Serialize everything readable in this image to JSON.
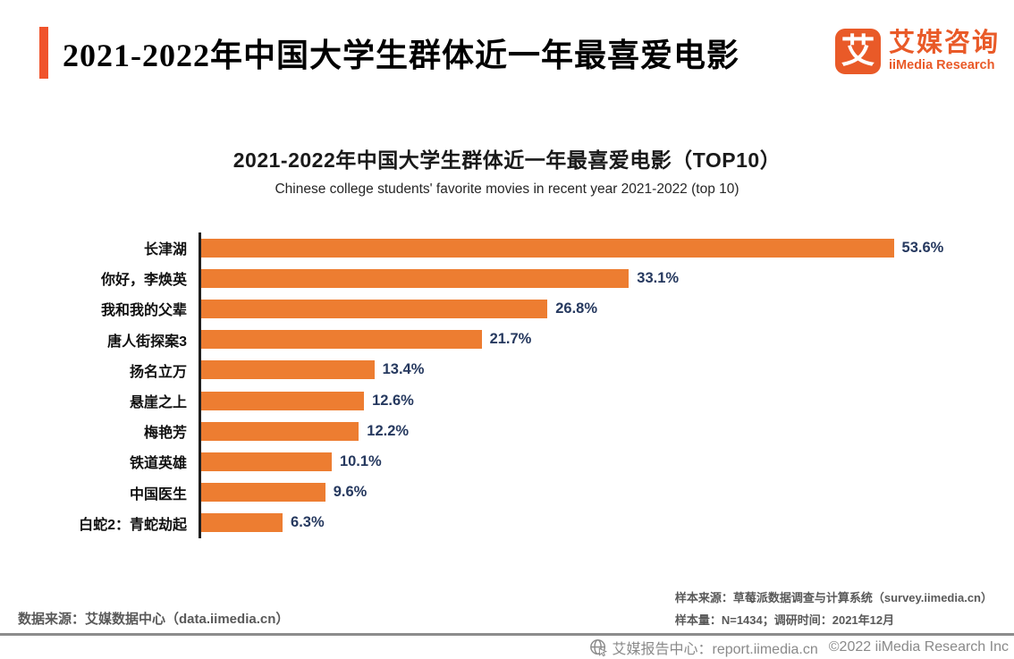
{
  "header": {
    "title": "2021-2022年中国大学生群体近一年最喜爱电影",
    "logo": {
      "glyph": "艾",
      "name_cn": "艾媒咨询",
      "name_en": "iiMedia Research"
    }
  },
  "chart_data": {
    "type": "bar",
    "orientation": "horizontal",
    "title": "2021-2022年中国大学生群体近一年最喜爱电影（TOP10）",
    "subtitle": "Chinese college students' favorite movies in recent year 2021-2022 (top 10)",
    "categories": [
      "长津湖",
      "你好，李焕英",
      "我和我的父辈",
      "唐人街探案3",
      "扬名立万",
      "悬崖之上",
      "梅艳芳",
      "铁道英雄",
      "中国医生",
      "白蛇2：青蛇劫起"
    ],
    "values": [
      53.6,
      33.1,
      26.8,
      21.7,
      13.4,
      12.6,
      12.2,
      10.1,
      9.6,
      6.3
    ],
    "value_suffix": "%",
    "xlim": [
      0,
      60
    ],
    "grid": false,
    "legend": false,
    "bar_color": "#ED7D31",
    "value_label_color": "#26395F",
    "axis_line_color": "#1f1f1f"
  },
  "footer": {
    "source_left": "数据来源：艾媒数据中心（data.iimedia.cn）",
    "sample_source": "样本来源：草莓派数据调查与计算系统（survey.iimedia.cn）",
    "sample_size": "样本量：N=1434；调研时间：2021年12月"
  },
  "bottombar": {
    "center_label": "艾媒报告中心：report.iimedia.cn",
    "copyright": "©2022  iiMedia Research Inc"
  },
  "colors": {
    "accent_orange_red": "#F0532B",
    "logo_orange": "#E95A28",
    "bar_orange": "#ED7D31",
    "value_navy": "#26395F",
    "footer_gray": "#595959",
    "bottombar_gray": "#8a8a8a"
  }
}
